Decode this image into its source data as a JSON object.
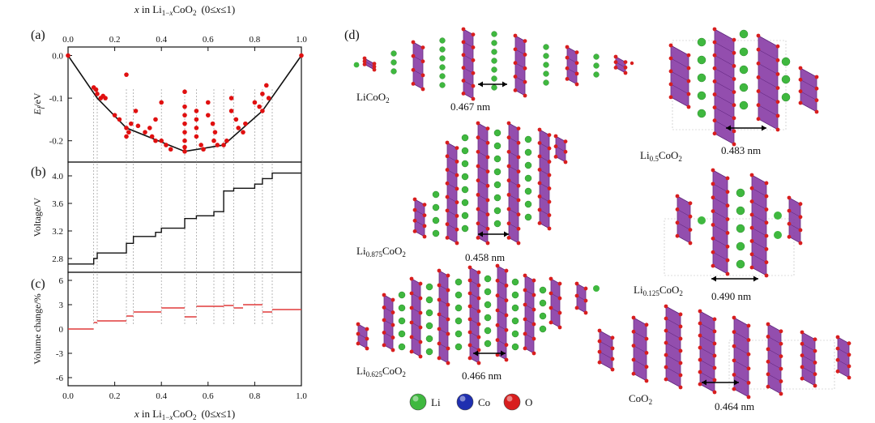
{
  "figure": {
    "panel_labels": [
      "(a)",
      "(b)",
      "(c)",
      "(d)"
    ],
    "top_axis_label": "x in Li1−xCoO2 (0≤x≤1)",
    "bottom_axis_label": "x in Li1−xCoO2 (0≤x≤1)",
    "x_ticks": [
      "0.0",
      "0.2",
      "0.4",
      "0.6",
      "0.8",
      "1.0"
    ]
  },
  "chart_data": [
    {
      "type": "scatter",
      "panel": "(a)",
      "ylabel": "Ef/eV",
      "xlim": [
        0,
        1
      ],
      "ylim": [
        -0.25,
        0.02
      ],
      "y_ticks": [
        "0.0",
        "-0.1",
        "-0.2"
      ],
      "hull_x": [
        0,
        0.125,
        0.25,
        0.5,
        0.667,
        0.833,
        1.0
      ],
      "hull_y": [
        0,
        -0.1,
        -0.17,
        -0.225,
        -0.21,
        -0.13,
        0
      ],
      "points": [
        [
          0,
          0
        ],
        [
          1,
          0
        ],
        [
          0.11,
          -0.075
        ],
        [
          0.12,
          -0.08
        ],
        [
          0.125,
          -0.09
        ],
        [
          0.14,
          -0.1
        ],
        [
          0.15,
          -0.095
        ],
        [
          0.16,
          -0.1
        ],
        [
          0.2,
          -0.14
        ],
        [
          0.22,
          -0.15
        ],
        [
          0.25,
          -0.17
        ],
        [
          0.25,
          -0.19
        ],
        [
          0.26,
          -0.18
        ],
        [
          0.27,
          -0.16
        ],
        [
          0.29,
          -0.13
        ],
        [
          0.3,
          -0.165
        ],
        [
          0.25,
          -0.045
        ],
        [
          0.33,
          -0.18
        ],
        [
          0.35,
          -0.17
        ],
        [
          0.36,
          -0.19
        ],
        [
          0.375,
          -0.2
        ],
        [
          0.375,
          -0.15
        ],
        [
          0.4,
          -0.11
        ],
        [
          0.4,
          -0.2
        ],
        [
          0.42,
          -0.21
        ],
        [
          0.44,
          -0.22
        ],
        [
          0.5,
          -0.085
        ],
        [
          0.5,
          -0.12
        ],
        [
          0.5,
          -0.14
        ],
        [
          0.5,
          -0.16
        ],
        [
          0.5,
          -0.18
        ],
        [
          0.5,
          -0.2
        ],
        [
          0.5,
          -0.215
        ],
        [
          0.5,
          -0.225
        ],
        [
          0.55,
          -0.13
        ],
        [
          0.55,
          -0.15
        ],
        [
          0.55,
          -0.17
        ],
        [
          0.55,
          -0.19
        ],
        [
          0.57,
          -0.21
        ],
        [
          0.58,
          -0.22
        ],
        [
          0.6,
          -0.11
        ],
        [
          0.6,
          -0.14
        ],
        [
          0.62,
          -0.16
        ],
        [
          0.63,
          -0.18
        ],
        [
          0.625,
          -0.2
        ],
        [
          0.64,
          -0.21
        ],
        [
          0.667,
          -0.21
        ],
        [
          0.68,
          -0.2
        ],
        [
          0.7,
          -0.1
        ],
        [
          0.7,
          -0.13
        ],
        [
          0.72,
          -0.15
        ],
        [
          0.73,
          -0.17
        ],
        [
          0.75,
          -0.18
        ],
        [
          0.76,
          -0.16
        ],
        [
          0.8,
          -0.11
        ],
        [
          0.82,
          -0.12
        ],
        [
          0.833,
          -0.09
        ],
        [
          0.833,
          -0.13
        ],
        [
          0.85,
          -0.07
        ],
        [
          0.86,
          -0.1
        ]
      ]
    },
    {
      "type": "line",
      "panel": "(b)",
      "ylabel": "Voltage/V",
      "xlim": [
        0,
        1
      ],
      "ylim": [
        2.6,
        4.2
      ],
      "y_ticks": [
        "4.0",
        "3.6",
        "3.2",
        "2.8"
      ],
      "steps": [
        [
          0.0,
          0.11,
          2.72
        ],
        [
          0.11,
          0.125,
          2.8
        ],
        [
          0.125,
          0.25,
          2.88
        ],
        [
          0.25,
          0.28,
          3.02
        ],
        [
          0.28,
          0.375,
          3.12
        ],
        [
          0.375,
          0.4,
          3.18
        ],
        [
          0.4,
          0.5,
          3.24
        ],
        [
          0.5,
          0.55,
          3.38
        ],
        [
          0.55,
          0.625,
          3.42
        ],
        [
          0.625,
          0.667,
          3.48
        ],
        [
          0.667,
          0.71,
          3.78
        ],
        [
          0.71,
          0.8,
          3.82
        ],
        [
          0.8,
          0.833,
          3.88
        ],
        [
          0.833,
          0.875,
          3.96
        ],
        [
          0.875,
          1.0,
          4.04
        ]
      ]
    },
    {
      "type": "line",
      "panel": "(c)",
      "ylabel": "Volume change/%",
      "xlim": [
        0,
        1
      ],
      "ylim": [
        -7,
        7
      ],
      "y_ticks": [
        "6",
        "3",
        "0",
        "-3",
        "-6"
      ],
      "steps": [
        [
          0.0,
          0.11,
          0.0
        ],
        [
          0.11,
          0.125,
          0.8
        ],
        [
          0.125,
          0.25,
          1.0
        ],
        [
          0.25,
          0.28,
          1.6
        ],
        [
          0.28,
          0.4,
          2.1
        ],
        [
          0.4,
          0.5,
          2.6
        ],
        [
          0.5,
          0.55,
          1.5
        ],
        [
          0.55,
          0.667,
          2.8
        ],
        [
          0.667,
          0.71,
          2.9
        ],
        [
          0.71,
          0.75,
          2.6
        ],
        [
          0.75,
          0.833,
          3.0
        ],
        [
          0.833,
          0.875,
          2.1
        ],
        [
          0.875,
          1.0,
          2.4
        ]
      ]
    }
  ],
  "structures": [
    {
      "formula_base": "Li",
      "formula_sub": "",
      "formula_rest": "CoO",
      "formula_sub2": "2",
      "spacing": "0.467 nm"
    },
    {
      "formula_base": "Li",
      "formula_sub": "0.5",
      "formula_rest": "CoO",
      "formula_sub2": "2",
      "spacing": "0.483 nm"
    },
    {
      "formula_base": "Li",
      "formula_sub": "0.875",
      "formula_rest": "CoO",
      "formula_sub2": "2",
      "spacing": "0.458 nm"
    },
    {
      "formula_base": "Li",
      "formula_sub": "0.125",
      "formula_rest": "CoO",
      "formula_sub2": "2",
      "spacing": "0.490 nm"
    },
    {
      "formula_base": "Li",
      "formula_sub": "0.625",
      "formula_rest": "CoO",
      "formula_sub2": "2",
      "spacing": "0.466 nm"
    },
    {
      "formula_base": "",
      "formula_sub": "",
      "formula_rest": "CoO",
      "formula_sub2": "2",
      "spacing": "0.464 nm"
    }
  ],
  "legend": [
    {
      "label": "Li",
      "color": "#3fb83f"
    },
    {
      "label": "Co",
      "color": "#1f2fb0"
    },
    {
      "label": "O",
      "color": "#d81e1e"
    }
  ],
  "colors": {
    "scatter": "#e01010",
    "hull": "#111111",
    "volume": "#e03a3a",
    "octahedron": "#8a3fa8",
    "octahedron_dark": "#5a1f78"
  }
}
